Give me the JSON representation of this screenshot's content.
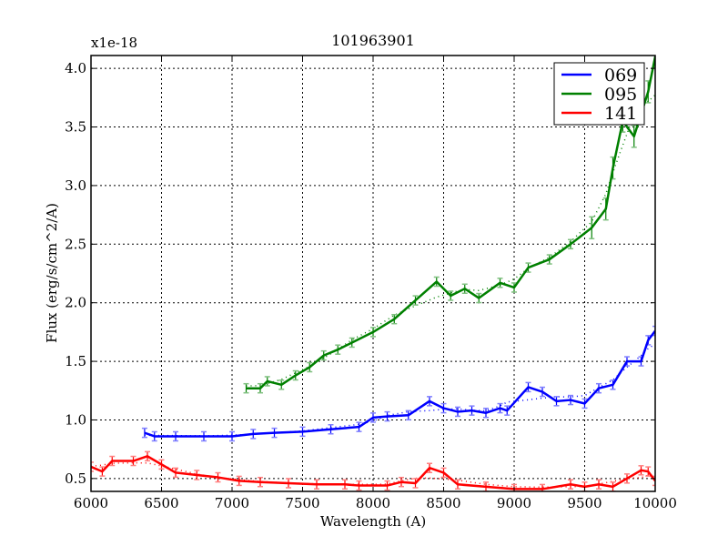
{
  "chart_data": {
    "type": "line",
    "title": "101963901",
    "xlabel": "Wavelength (A)",
    "ylabel": "Flux (erg/s/cm^2/A)",
    "y_offset_label": "x1e-18",
    "xlim": [
      6000,
      10000
    ],
    "ylim": [
      0.39,
      4.11
    ],
    "xticks": [
      6000,
      6500,
      7000,
      7500,
      8000,
      8500,
      9000,
      9500,
      10000
    ],
    "yticks": [
      0.5,
      1.0,
      1.5,
      2.0,
      2.5,
      3.0,
      3.5,
      4.0
    ],
    "xtick_labels": [
      "6000",
      "6500",
      "7000",
      "7500",
      "8000",
      "8500",
      "9000",
      "9500",
      "10000"
    ],
    "ytick_labels": [
      "0.5",
      "1.0",
      "1.5",
      "2.0",
      "2.5",
      "3.0",
      "3.5",
      "4.0"
    ],
    "grid": true,
    "legend_position": "upper right",
    "error_bars": true,
    "series": [
      {
        "name": "069",
        "color": "#0000ff",
        "x": [
          6380,
          6450,
          6600,
          6800,
          7000,
          7150,
          7300,
          7500,
          7700,
          7900,
          8000,
          8100,
          8250,
          8400,
          8500,
          8600,
          8700,
          8800,
          8900,
          8950,
          9100,
          9200,
          9300,
          9400,
          9500,
          9600,
          9700,
          9800,
          9900,
          9950,
          10000
        ],
        "y": [
          0.89,
          0.86,
          0.86,
          0.86,
          0.86,
          0.88,
          0.89,
          0.9,
          0.92,
          0.94,
          1.02,
          1.03,
          1.04,
          1.16,
          1.1,
          1.07,
          1.08,
          1.06,
          1.1,
          1.08,
          1.28,
          1.24,
          1.16,
          1.17,
          1.14,
          1.27,
          1.3,
          1.5,
          1.5,
          1.68,
          1.76
        ]
      },
      {
        "name": "095",
        "color": "#008000",
        "x": [
          7100,
          7200,
          7250,
          7350,
          7450,
          7550,
          7650,
          7750,
          7850,
          8000,
          8150,
          8300,
          8450,
          8550,
          8650,
          8750,
          8900,
          9000,
          9100,
          9250,
          9400,
          9550,
          9650,
          9700,
          9770,
          9850,
          9950,
          10000
        ],
        "y": [
          1.27,
          1.27,
          1.33,
          1.3,
          1.38,
          1.45,
          1.55,
          1.6,
          1.66,
          1.75,
          1.86,
          2.02,
          2.18,
          2.06,
          2.12,
          2.04,
          2.17,
          2.13,
          2.3,
          2.37,
          2.5,
          2.64,
          2.8,
          3.15,
          3.55,
          3.42,
          3.8,
          4.1
        ]
      },
      {
        "name": "141",
        "color": "#ff0000",
        "x": [
          6000,
          6080,
          6150,
          6300,
          6400,
          6500,
          6600,
          6750,
          6900,
          7050,
          7200,
          7400,
          7600,
          7800,
          7900,
          8100,
          8200,
          8300,
          8400,
          8500,
          8600,
          8800,
          9000,
          9200,
          9400,
          9500,
          9600,
          9700,
          9800,
          9900,
          9950,
          10000
        ],
        "y": [
          0.6,
          0.56,
          0.65,
          0.65,
          0.69,
          0.62,
          0.55,
          0.53,
          0.51,
          0.48,
          0.47,
          0.46,
          0.45,
          0.45,
          0.44,
          0.44,
          0.47,
          0.46,
          0.59,
          0.55,
          0.45,
          0.43,
          0.41,
          0.41,
          0.45,
          0.43,
          0.45,
          0.43,
          0.5,
          0.57,
          0.56,
          0.48
        ]
      }
    ]
  },
  "legend": {
    "items": [
      {
        "label": "069",
        "color": "#0000ff"
      },
      {
        "label": "095",
        "color": "#008000"
      },
      {
        "label": "141",
        "color": "#ff0000"
      }
    ]
  }
}
